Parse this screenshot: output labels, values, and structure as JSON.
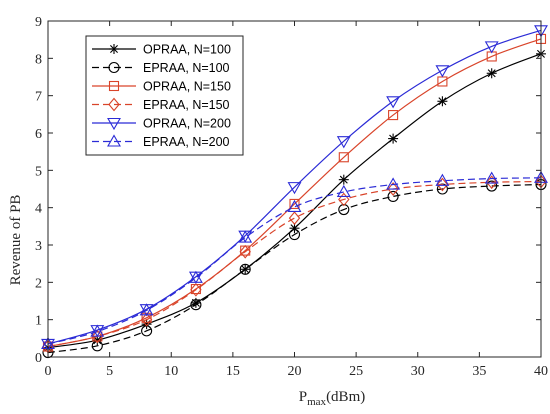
{
  "chart_data": {
    "type": "line",
    "xlabel": "P",
    "xlabel_sub": "max",
    "xlabel_unit": "(dBm)",
    "ylabel": "Revenue of PB",
    "xlim": [
      0,
      40
    ],
    "ylim": [
      0,
      9
    ],
    "xticks": [
      0,
      5,
      10,
      15,
      20,
      25,
      30,
      35,
      40
    ],
    "yticks": [
      0,
      1,
      2,
      3,
      4,
      5,
      6,
      7,
      8,
      9
    ],
    "grid": false,
    "legend_position": "top-left",
    "x": [
      0,
      4,
      8,
      12,
      16,
      20,
      24,
      28,
      32,
      36,
      40
    ],
    "series": [
      {
        "name": "OPRAA, N=100",
        "color": "#000000",
        "linestyle": "solid",
        "marker": "asterisk",
        "values": [
          0.25,
          0.45,
          0.88,
          1.45,
          2.35,
          3.45,
          4.75,
          5.85,
          6.85,
          7.6,
          8.12
        ]
      },
      {
        "name": "EPRAA, N=100",
        "color": "#000000",
        "linestyle": "dashed",
        "marker": "circle",
        "values": [
          0.12,
          0.3,
          0.7,
          1.4,
          2.35,
          3.28,
          3.95,
          4.3,
          4.5,
          4.58,
          4.62
        ]
      },
      {
        "name": "OPRAA, N=150",
        "color": "#d9442a",
        "linestyle": "solid",
        "marker": "square",
        "values": [
          0.28,
          0.55,
          1.05,
          1.82,
          2.85,
          4.1,
          5.35,
          6.48,
          7.38,
          8.05,
          8.52
        ]
      },
      {
        "name": "EPRAA, N=150",
        "color": "#d9442a",
        "linestyle": "dashed",
        "marker": "diamond",
        "values": [
          0.28,
          0.55,
          1.0,
          1.8,
          2.82,
          3.72,
          4.22,
          4.5,
          4.62,
          4.68,
          4.7
        ]
      },
      {
        "name": "OPRAA, N=200",
        "color": "#2b2bd6",
        "linestyle": "solid",
        "marker": "triangle-down",
        "values": [
          0.35,
          0.72,
          1.28,
          2.15,
          3.25,
          4.55,
          5.78,
          6.85,
          7.68,
          8.32,
          8.75
        ]
      },
      {
        "name": "EPRAA, N=200",
        "color": "#2b2bd6",
        "linestyle": "dashed",
        "marker": "triangle-up",
        "values": [
          0.35,
          0.68,
          1.25,
          2.12,
          3.2,
          4.02,
          4.42,
          4.62,
          4.72,
          4.78,
          4.8
        ]
      }
    ]
  }
}
